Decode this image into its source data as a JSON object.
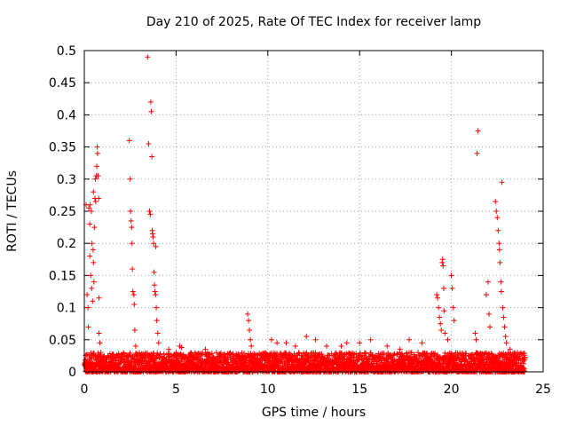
{
  "chart_data": {
    "type": "scatter",
    "title": "Day 210 of 2025, Rate Of TEC Index for receiver lamp",
    "xlabel": "GPS time / hours",
    "ylabel": "ROTI / TECUs",
    "xlim": [
      0,
      25
    ],
    "ylim": [
      0,
      0.5
    ],
    "xticks": [
      0,
      5,
      10,
      15,
      20,
      25
    ],
    "xtick_labels": [
      "0",
      "5",
      "10",
      "15",
      "20",
      "25"
    ],
    "yticks": [
      0,
      0.05,
      0.1,
      0.15,
      0.2,
      0.25,
      0.3,
      0.35,
      0.4,
      0.45,
      0.5
    ],
    "ytick_labels": [
      "0",
      "0.05",
      "0.1",
      "0.15",
      "0.2",
      "0.25",
      "0.3",
      "0.35",
      "0.4",
      "0.45",
      "0.5"
    ],
    "grid": true,
    "marker": "+",
    "series": [
      {
        "name": "ROTI",
        "color": "#ff0000",
        "points": [
          [
            0.1,
            0.26
          ],
          [
            0.15,
            0.12
          ],
          [
            0.2,
            0.1
          ],
          [
            0.22,
            0.07
          ],
          [
            0.25,
            0.255
          ],
          [
            0.3,
            0.23
          ],
          [
            0.3,
            0.18
          ],
          [
            0.32,
            0.26
          ],
          [
            0.35,
            0.15
          ],
          [
            0.38,
            0.25
          ],
          [
            0.4,
            0.13
          ],
          [
            0.42,
            0.2
          ],
          [
            0.45,
            0.11
          ],
          [
            0.48,
            0.19
          ],
          [
            0.5,
            0.28
          ],
          [
            0.5,
            0.17
          ],
          [
            0.52,
            0.14
          ],
          [
            0.55,
            0.225
          ],
          [
            0.58,
            0.27
          ],
          [
            0.6,
            0.3
          ],
          [
            0.62,
            0.265
          ],
          [
            0.65,
            0.305
          ],
          [
            0.68,
            0.32
          ],
          [
            0.7,
            0.35
          ],
          [
            0.72,
            0.34
          ],
          [
            0.75,
            0.305
          ],
          [
            0.78,
            0.27
          ],
          [
            0.8,
            0.115
          ],
          [
            0.8,
            0.06
          ],
          [
            0.85,
            0.045
          ],
          [
            0.9,
            0.03
          ],
          [
            2.45,
            0.36
          ],
          [
            2.5,
            0.3
          ],
          [
            2.52,
            0.25
          ],
          [
            2.55,
            0.235
          ],
          [
            2.58,
            0.225
          ],
          [
            2.6,
            0.2
          ],
          [
            2.62,
            0.16
          ],
          [
            2.65,
            0.125
          ],
          [
            2.7,
            0.12
          ],
          [
            2.72,
            0.105
          ],
          [
            2.75,
            0.065
          ],
          [
            2.8,
            0.04
          ],
          [
            3.45,
            0.49
          ],
          [
            3.5,
            0.355
          ],
          [
            3.55,
            0.25
          ],
          [
            3.6,
            0.245
          ],
          [
            3.62,
            0.42
          ],
          [
            3.65,
            0.405
          ],
          [
            3.68,
            0.335
          ],
          [
            3.7,
            0.22
          ],
          [
            3.72,
            0.215
          ],
          [
            3.75,
            0.21
          ],
          [
            3.78,
            0.2
          ],
          [
            3.8,
            0.155
          ],
          [
            3.82,
            0.135
          ],
          [
            3.85,
            0.125
          ],
          [
            3.88,
            0.12
          ],
          [
            3.9,
            0.195
          ],
          [
            3.92,
            0.1
          ],
          [
            3.95,
            0.08
          ],
          [
            4.0,
            0.06
          ],
          [
            4.05,
            0.045
          ],
          [
            4.6,
            0.035
          ],
          [
            5.0,
            0.03
          ],
          [
            5.2,
            0.04
          ],
          [
            5.3,
            0.038
          ],
          [
            5.8,
            0.03
          ],
          [
            6.6,
            0.035
          ],
          [
            7.2,
            0.03
          ],
          [
            8.9,
            0.09
          ],
          [
            8.95,
            0.08
          ],
          [
            9.0,
            0.065
          ],
          [
            9.05,
            0.05
          ],
          [
            9.1,
            0.04
          ],
          [
            10.2,
            0.05
          ],
          [
            10.5,
            0.045
          ],
          [
            11.0,
            0.045
          ],
          [
            11.5,
            0.04
          ],
          [
            12.1,
            0.055
          ],
          [
            12.6,
            0.05
          ],
          [
            13.2,
            0.04
          ],
          [
            14.0,
            0.04
          ],
          [
            14.3,
            0.045
          ],
          [
            15.0,
            0.045
          ],
          [
            15.6,
            0.05
          ],
          [
            16.5,
            0.04
          ],
          [
            17.2,
            0.035
          ],
          [
            17.7,
            0.05
          ],
          [
            18.4,
            0.045
          ],
          [
            19.2,
            0.12
          ],
          [
            19.25,
            0.115
          ],
          [
            19.3,
            0.1
          ],
          [
            19.35,
            0.085
          ],
          [
            19.4,
            0.075
          ],
          [
            19.45,
            0.065
          ],
          [
            19.5,
            0.17
          ],
          [
            19.52,
            0.175
          ],
          [
            19.55,
            0.165
          ],
          [
            19.58,
            0.13
          ],
          [
            19.6,
            0.095
          ],
          [
            19.65,
            0.06
          ],
          [
            19.8,
            0.05
          ],
          [
            20.0,
            0.15
          ],
          [
            20.05,
            0.13
          ],
          [
            20.1,
            0.1
          ],
          [
            20.15,
            0.08
          ],
          [
            21.3,
            0.06
          ],
          [
            21.35,
            0.05
          ],
          [
            21.4,
            0.34
          ],
          [
            21.45,
            0.375
          ],
          [
            21.9,
            0.12
          ],
          [
            22.0,
            0.14
          ],
          [
            22.05,
            0.09
          ],
          [
            22.1,
            0.07
          ],
          [
            22.4,
            0.265
          ],
          [
            22.45,
            0.25
          ],
          [
            22.5,
            0.24
          ],
          [
            22.55,
            0.22
          ],
          [
            22.6,
            0.2
          ],
          [
            22.62,
            0.19
          ],
          [
            22.65,
            0.17
          ],
          [
            22.7,
            0.14
          ],
          [
            22.72,
            0.125
          ],
          [
            22.75,
            0.295
          ],
          [
            22.8,
            0.1
          ],
          [
            22.85,
            0.085
          ],
          [
            22.9,
            0.07
          ],
          [
            22.95,
            0.055
          ],
          [
            23.0,
            0.045
          ],
          [
            23.2,
            0.035
          ],
          [
            23.6,
            0.03
          ],
          [
            23.9,
            0.02
          ]
        ],
        "baseline_band": {
          "x_range": [
            0,
            24
          ],
          "typical_range": [
            0.0,
            0.03
          ]
        }
      }
    ]
  }
}
